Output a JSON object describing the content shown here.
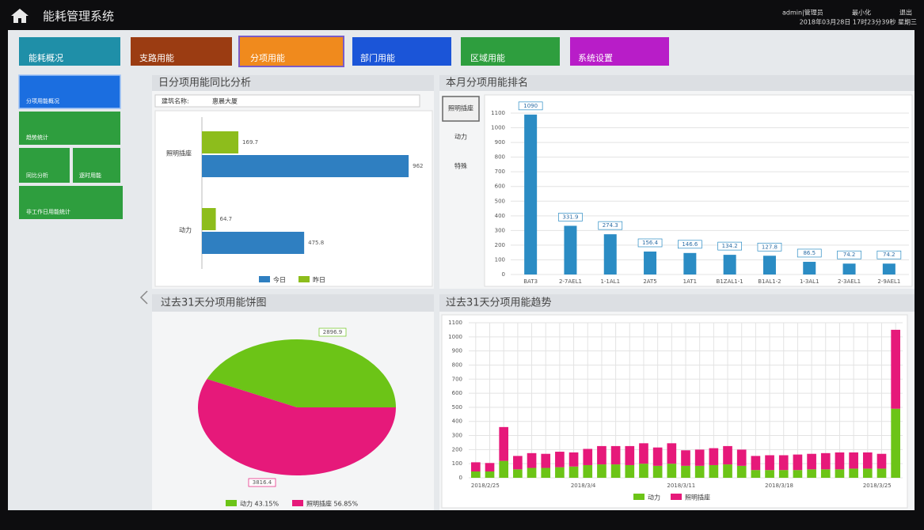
{
  "header": {
    "title": "能耗管理系统",
    "user": "admin|管理员",
    "minimize": "最小化",
    "logout": "退出",
    "datetime": "2018年03月28日 17时23分39秒 星期三"
  },
  "top_nav": [
    "能耗概况",
    "支路用能",
    "分项用能",
    "部门用能",
    "区域用能",
    "系统设置"
  ],
  "side_nav": [
    "分项用能概况",
    "趋势统计",
    "同比分析",
    "逐时用能",
    "非工作日用能统计"
  ],
  "chart_data": [
    {
      "type": "hbar",
      "title": "日分项用能同比分析",
      "filter_label": "建筑名称:",
      "filter_value": "惠晨大厦",
      "categories": [
        "照明插座",
        "动力"
      ],
      "series": [
        {
          "name": "今日",
          "color": "#2f7fc1",
          "values": [
            962,
            475.8
          ]
        },
        {
          "name": "昨日",
          "color": "#8dbd1c",
          "values": [
            169.7,
            64.7
          ]
        }
      ],
      "xlim": [
        0,
        1050
      ]
    },
    {
      "type": "bar",
      "title": "本月分项用能排名",
      "tabs": [
        "照明插座",
        "动力",
        "特殊"
      ],
      "categories": [
        "BAT3",
        "2-7AEL1",
        "1-1AL1",
        "2AT5",
        "1AT1",
        "B1ZAL1-1",
        "B1AL1-2",
        "1-3AL1",
        "2-3AEL1",
        "2-9AEL1"
      ],
      "values": [
        1090,
        331.9,
        274.3,
        156.4,
        146.6,
        134.2,
        127.8,
        86.5,
        74.2,
        74.2
      ],
      "color": "#2b8cc4",
      "ylim": [
        0,
        1100
      ],
      "yticks": [
        0,
        100,
        200,
        300,
        400,
        500,
        600,
        700,
        800,
        900,
        1000,
        1100
      ],
      "grid": true
    },
    {
      "type": "pie",
      "title": "过去31天分项用能饼图",
      "categories": [
        "动力",
        "照明插座"
      ],
      "values": [
        2896.9,
        3816.4
      ],
      "colors": [
        "#6cc417",
        "#e6197a"
      ],
      "legend_labels": [
        "动力 43.15%",
        "照明插座 56.85%"
      ]
    },
    {
      "type": "stacked_bar",
      "title": "过去31天分项用能趋势",
      "categories": [
        "2018/2/25",
        null,
        null,
        null,
        null,
        null,
        null,
        "2018/3/4",
        null,
        null,
        null,
        null,
        null,
        null,
        "2018/3/11",
        null,
        null,
        null,
        null,
        null,
        null,
        "2018/3/18",
        null,
        null,
        null,
        null,
        null,
        null,
        "2018/3/25",
        null,
        null
      ],
      "series": [
        {
          "name": "动力",
          "color": "#6cc417",
          "values": [
            45,
            45,
            120,
            60,
            70,
            70,
            75,
            80,
            90,
            95,
            95,
            90,
            100,
            85,
            100,
            85,
            85,
            90,
            95,
            85,
            55,
            55,
            55,
            55,
            60,
            60,
            60,
            65,
            65,
            65,
            490
          ]
        },
        {
          "name": "照明插座",
          "color": "#e6197a",
          "values": [
            65,
            60,
            240,
            95,
            105,
            100,
            110,
            100,
            115,
            130,
            130,
            135,
            145,
            130,
            145,
            110,
            115,
            120,
            130,
            115,
            100,
            105,
            105,
            110,
            110,
            115,
            120,
            115,
            115,
            105,
            560
          ]
        }
      ],
      "ylim": [
        0,
        1100
      ],
      "yticks": [
        0,
        100,
        200,
        300,
        400,
        500,
        600,
        700,
        800,
        900,
        1000,
        1100
      ],
      "grid": true
    }
  ]
}
